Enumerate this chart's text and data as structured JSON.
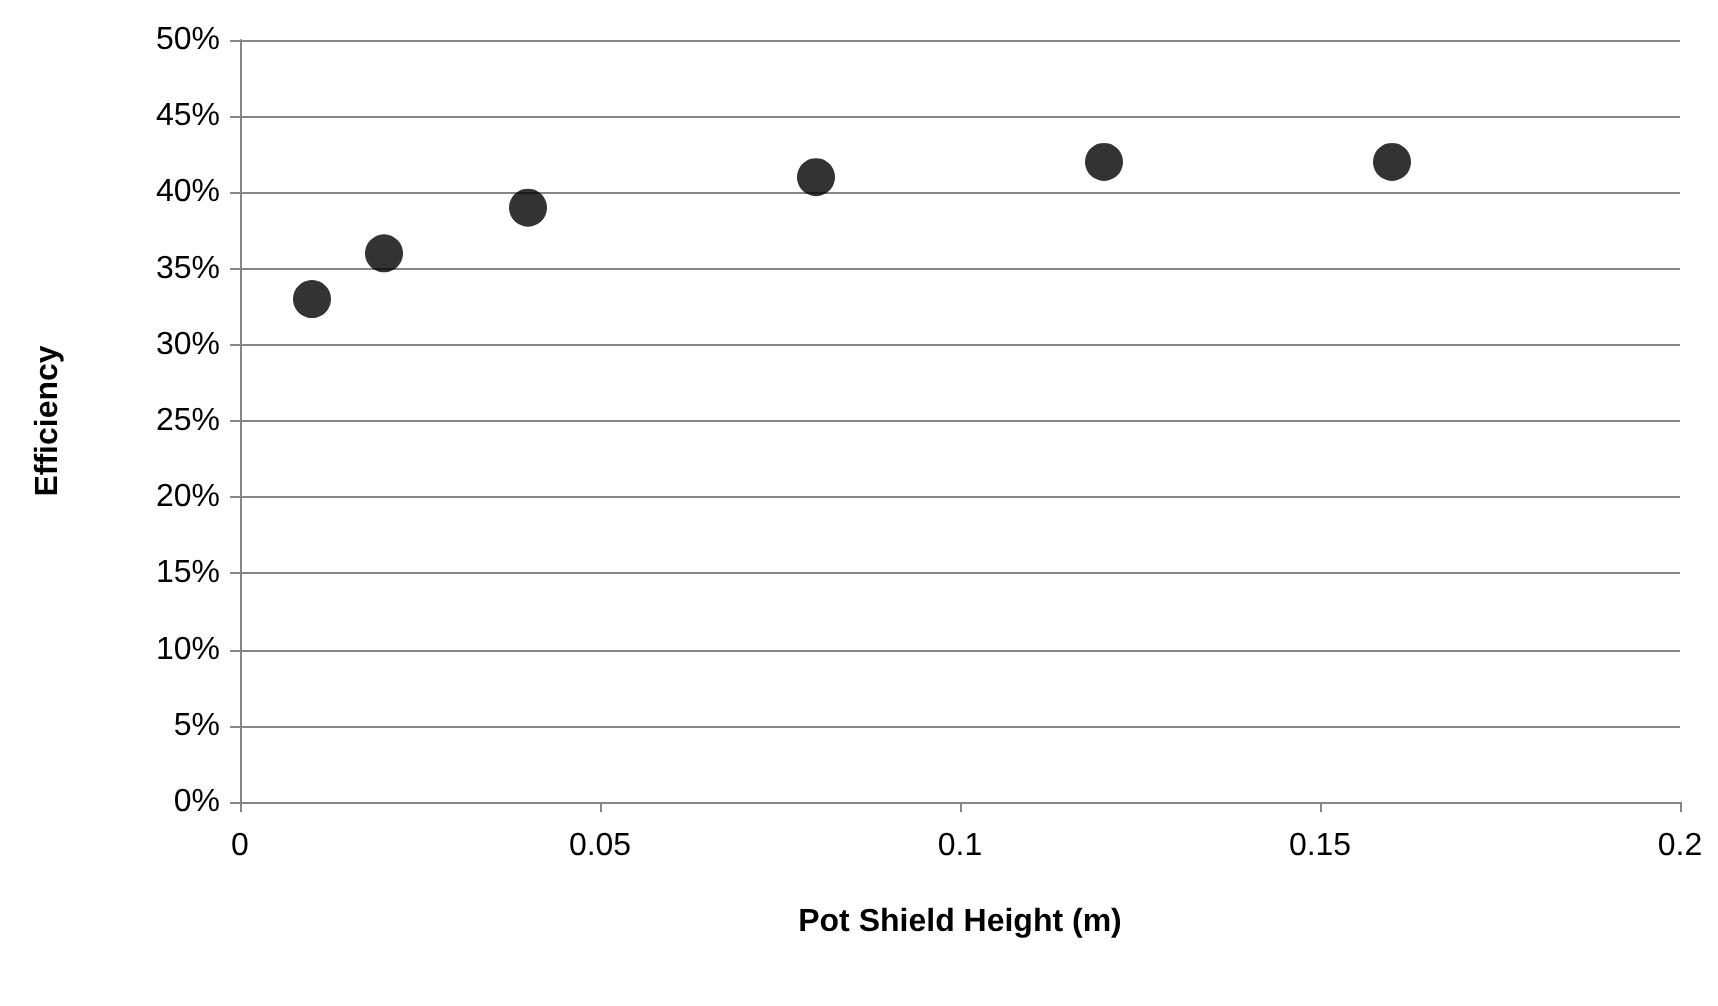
{
  "chart_data": {
    "type": "scatter",
    "xlabel": "Pot Shield Height (m)",
    "ylabel": "Efficiency",
    "x": [
      0.01,
      0.02,
      0.04,
      0.08,
      0.12,
      0.16
    ],
    "values": [
      33,
      36,
      39,
      41,
      42,
      42
    ],
    "color": "#000000",
    "marker": "circle",
    "grid": "y",
    "xlim": [
      0,
      0.2
    ],
    "xticks": [
      0,
      0.05,
      0.1,
      0.15,
      0.2
    ],
    "ylim": [
      0,
      50
    ],
    "yticks": [
      {
        "value": 0,
        "label": "0%"
      },
      {
        "value": 5,
        "label": "5%"
      },
      {
        "value": 10,
        "label": "10%"
      },
      {
        "value": 15,
        "label": "15%"
      },
      {
        "value": 20,
        "label": "20%"
      },
      {
        "value": 25,
        "label": "25%"
      },
      {
        "value": 30,
        "label": "30%"
      },
      {
        "value": 35,
        "label": "35%"
      },
      {
        "value": 40,
        "label": "40%"
      },
      {
        "value": 45,
        "label": "45%"
      },
      {
        "value": 50,
        "label": "50%"
      }
    ]
  }
}
